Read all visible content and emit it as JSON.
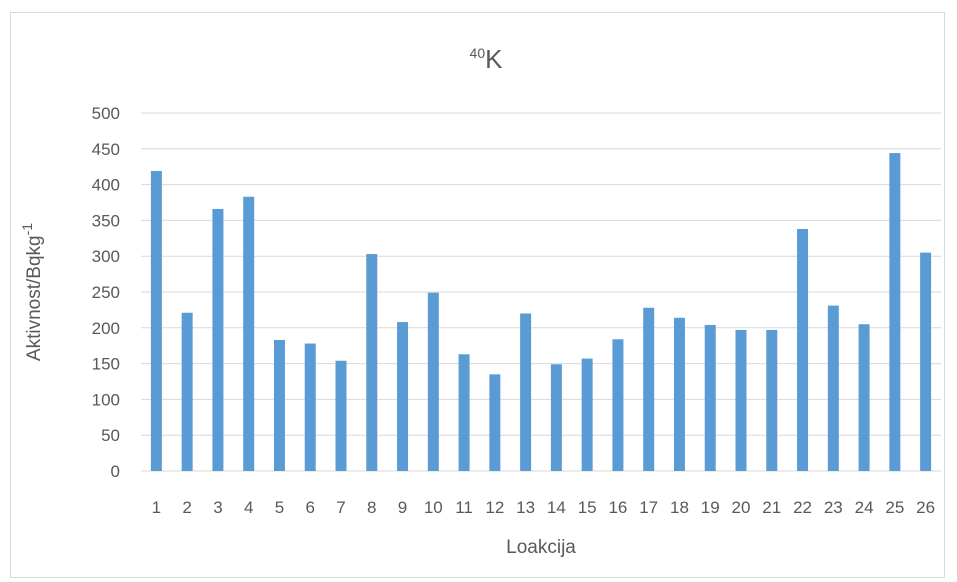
{
  "chart_data": {
    "type": "bar",
    "title_sup": "40",
    "title_main": "K",
    "xlabel": "Loakcija",
    "ylabel_main": "Aktivnost/Bqkg",
    "ylabel_sup": "-1",
    "categories": [
      "1",
      "2",
      "3",
      "4",
      "5",
      "6",
      "7",
      "8",
      "9",
      "10",
      "11",
      "12",
      "13",
      "14",
      "15",
      "16",
      "17",
      "18",
      "19",
      "20",
      "21",
      "22",
      "23",
      "24",
      "25",
      "26"
    ],
    "values": [
      419,
      221,
      366,
      383,
      183,
      178,
      154,
      303,
      208,
      249,
      163,
      135,
      220,
      149,
      157,
      184,
      228,
      214,
      204,
      197,
      197,
      338,
      231,
      205,
      444,
      305
    ],
    "ylim": [
      0,
      500
    ],
    "yticks": [
      "0",
      "50",
      "100",
      "150",
      "200",
      "250",
      "300",
      "350",
      "400",
      "450",
      "500"
    ],
    "grid": true,
    "bar_color": "#5b9bd5",
    "grid_color": "#d9d9d9"
  }
}
